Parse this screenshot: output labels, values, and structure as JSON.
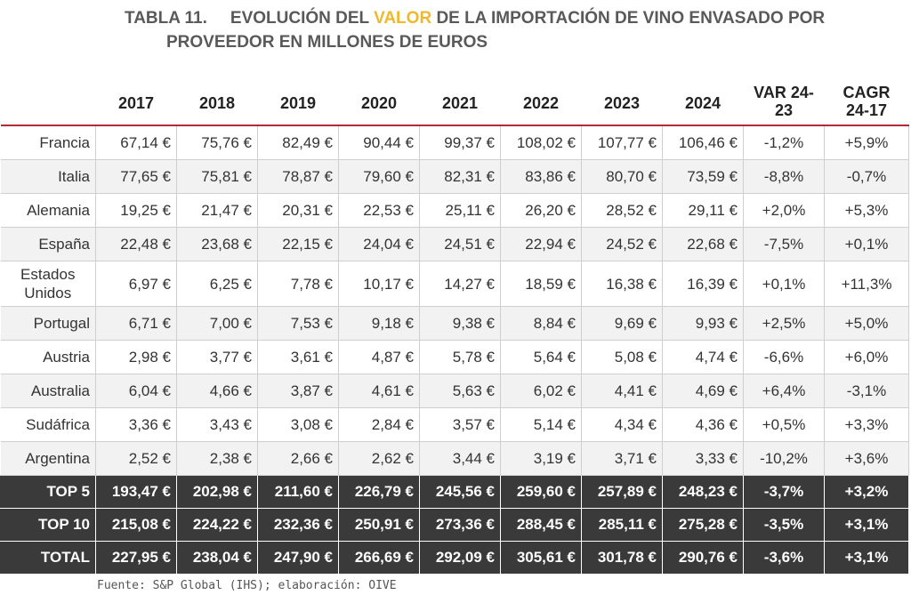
{
  "title": {
    "label": "TABLA 11.",
    "line1_before": "EVOLUCIÓN DEL ",
    "highlight": "VALOR",
    "line1_after": " DE LA IMPORTACIÓN DE VINO ENVASADO POR",
    "line2": "PROVEEDOR EN MILLONES DE EUROS",
    "highlight_color": "#f2b82b"
  },
  "headers": {
    "years": [
      "2017",
      "2018",
      "2019",
      "2020",
      "2021",
      "2022",
      "2023",
      "2024"
    ],
    "var_line1": "VAR 24-",
    "var_line2": "23",
    "cagr_line1": "CAGR",
    "cagr_line2": "24-17"
  },
  "rows": [
    {
      "name": "Francia",
      "values": [
        "67,14 €",
        "75,76 €",
        "82,49 €",
        "90,44 €",
        "99,37 €",
        "108,02 €",
        "107,77 €",
        "106,46 €"
      ],
      "var": "-1,2%",
      "cagr": "+5,9%"
    },
    {
      "name": "Italia",
      "values": [
        "77,65 €",
        "75,81 €",
        "78,87 €",
        "79,60 €",
        "82,31 €",
        "83,86 €",
        "80,70 €",
        "73,59 €"
      ],
      "var": "-8,8%",
      "cagr": "-0,7%"
    },
    {
      "name": "Alemania",
      "values": [
        "19,25 €",
        "21,47 €",
        "20,31 €",
        "22,53 €",
        "25,11 €",
        "26,20 €",
        "28,52 €",
        "29,11 €"
      ],
      "var": "+2,0%",
      "cagr": "+5,3%"
    },
    {
      "name": "España",
      "values": [
        "22,48 €",
        "23,68 €",
        "22,15 €",
        "24,04 €",
        "24,51 €",
        "22,94 €",
        "24,52 €",
        "22,68 €"
      ],
      "var": "-7,5%",
      "cagr": "+0,1%"
    },
    {
      "name": "Estados Unidos",
      "values": [
        "6,97 €",
        "6,25 €",
        "7,78 €",
        "10,17 €",
        "14,27 €",
        "18,59 €",
        "16,38 €",
        "16,39 €"
      ],
      "var": "+0,1%",
      "cagr": "+11,3%"
    },
    {
      "name": "Portugal",
      "values": [
        "6,71 €",
        "7,00 €",
        "7,53 €",
        "9,18 €",
        "9,38 €",
        "8,84 €",
        "9,69 €",
        "9,93 €"
      ],
      "var": "+2,5%",
      "cagr": "+5,0%"
    },
    {
      "name": "Austria",
      "values": [
        "2,98 €",
        "3,77 €",
        "3,61 €",
        "4,87 €",
        "5,78 €",
        "5,64 €",
        "5,08 €",
        "4,74 €"
      ],
      "var": "-6,6%",
      "cagr": "+6,0%"
    },
    {
      "name": "Australia",
      "values": [
        "6,04 €",
        "4,66 €",
        "3,87 €",
        "4,61 €",
        "5,63 €",
        "6,02 €",
        "4,41 €",
        "4,69 €"
      ],
      "var": "+6,4%",
      "cagr": "-3,1%"
    },
    {
      "name": "Sudáfrica",
      "values": [
        "3,36 €",
        "3,43 €",
        "3,08 €",
        "2,84 €",
        "3,57 €",
        "5,14 €",
        "4,34 €",
        "4,36 €"
      ],
      "var": "+0,5%",
      "cagr": "+3,3%"
    },
    {
      "name": "Argentina",
      "values": [
        "2,52 €",
        "2,38 €",
        "2,66 €",
        "2,62 €",
        "3,44 €",
        "3,19 €",
        "3,71 €",
        "3,33 €"
      ],
      "var": "-10,2%",
      "cagr": "+3,6%"
    }
  ],
  "totals": [
    {
      "name": "TOP 5",
      "values": [
        "193,47 €",
        "202,98 €",
        "211,60 €",
        "226,79 €",
        "245,56 €",
        "259,60 €",
        "257,89 €",
        "248,23 €"
      ],
      "var": "-3,7%",
      "cagr": "+3,2%"
    },
    {
      "name": "TOP 10",
      "values": [
        "215,08 €",
        "224,22 €",
        "232,36 €",
        "250,91 €",
        "273,36 €",
        "288,45 €",
        "285,11 €",
        "275,28 €"
      ],
      "var": "-3,5%",
      "cagr": "+3,1%"
    },
    {
      "name": "TOTAL",
      "values": [
        "227,95 €",
        "238,04 €",
        "247,90 €",
        "266,69 €",
        "292,09 €",
        "305,61 €",
        "301,78 €",
        "290,76 €"
      ],
      "var": "-3,6%",
      "cagr": "+3,1%"
    }
  ],
  "source": "Fuente: S&P Global (IHS); elaboración: OIVE",
  "colors": {
    "header_rule": "#b5283a",
    "total_bg": "#3a3a3a",
    "stripe": "#f2f2f2"
  }
}
